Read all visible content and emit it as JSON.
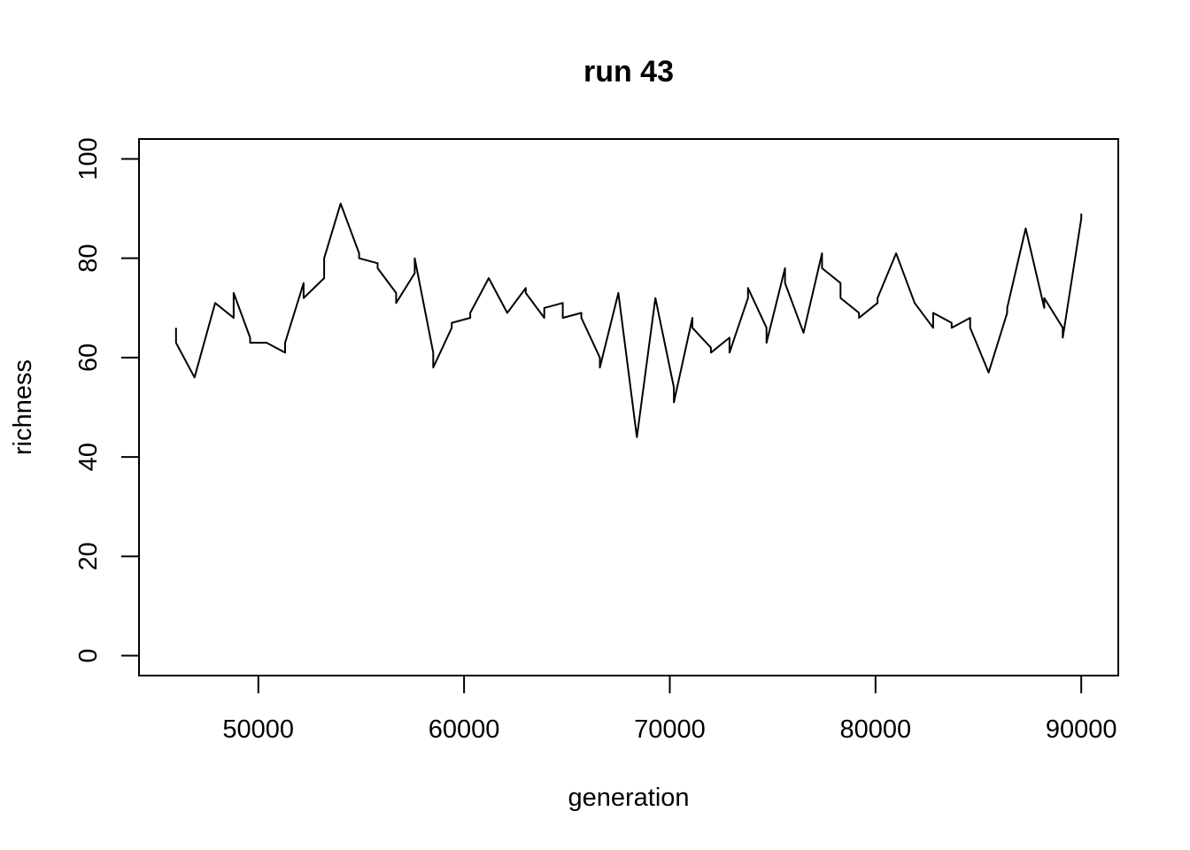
{
  "chart_data": {
    "type": "line",
    "title": "run 43",
    "xlabel": "generation",
    "ylabel": "richness",
    "xlim": [
      44200,
      91800
    ],
    "ylim": [
      -4,
      104
    ],
    "xticks": [
      50000,
      60000,
      70000,
      80000,
      90000
    ],
    "yticks": [
      0,
      20,
      40,
      60,
      80,
      100
    ],
    "grid": false,
    "line_color": "#000000",
    "series": [
      {
        "x": [
          46000,
          46000,
          46900,
          47900,
          48800,
          48800,
          49600,
          49600,
          50400,
          51300,
          51300,
          52200,
          52200,
          53200,
          53200,
          54000,
          54900,
          54900,
          55800,
          55800,
          56700,
          56700,
          57600,
          57600,
          58500,
          58500,
          59400,
          59400,
          60300,
          60300,
          61200,
          62100,
          63000,
          63000,
          63900,
          63900,
          64800,
          64800,
          65700,
          65700,
          66600,
          66600,
          67500,
          68400,
          69300,
          70200,
          70200,
          71100,
          71100,
          72000,
          72000,
          72900,
          72900,
          73800,
          73800,
          74700,
          74700,
          75600,
          75600,
          76500,
          77400,
          77400,
          78300,
          78300,
          79200,
          79200,
          80100,
          80100,
          81000,
          81900,
          82800,
          82800,
          83700,
          83700,
          84600,
          84600,
          85500,
          86400,
          86400,
          87300,
          88200,
          88200,
          89100,
          89100,
          90000,
          90000
        ],
        "values": [
          66,
          63,
          56,
          71,
          68,
          73,
          64,
          63,
          63,
          61,
          63,
          75,
          72,
          76,
          80,
          91,
          81,
          80,
          79,
          78,
          73,
          71,
          77,
          80,
          61,
          58,
          66,
          67,
          68,
          69,
          76,
          69,
          74,
          73,
          68,
          70,
          71,
          68,
          69,
          68,
          60,
          58,
          73,
          44,
          72,
          54,
          51,
          68,
          66,
          62,
          61,
          64,
          61,
          72,
          74,
          66,
          63,
          78,
          75,
          65,
          81,
          78,
          75,
          72,
          69,
          68,
          71,
          72,
          81,
          71,
          66,
          69,
          67,
          66,
          68,
          66,
          57,
          69,
          70,
          86,
          70,
          72,
          66,
          64,
          88,
          89
        ]
      }
    ]
  }
}
